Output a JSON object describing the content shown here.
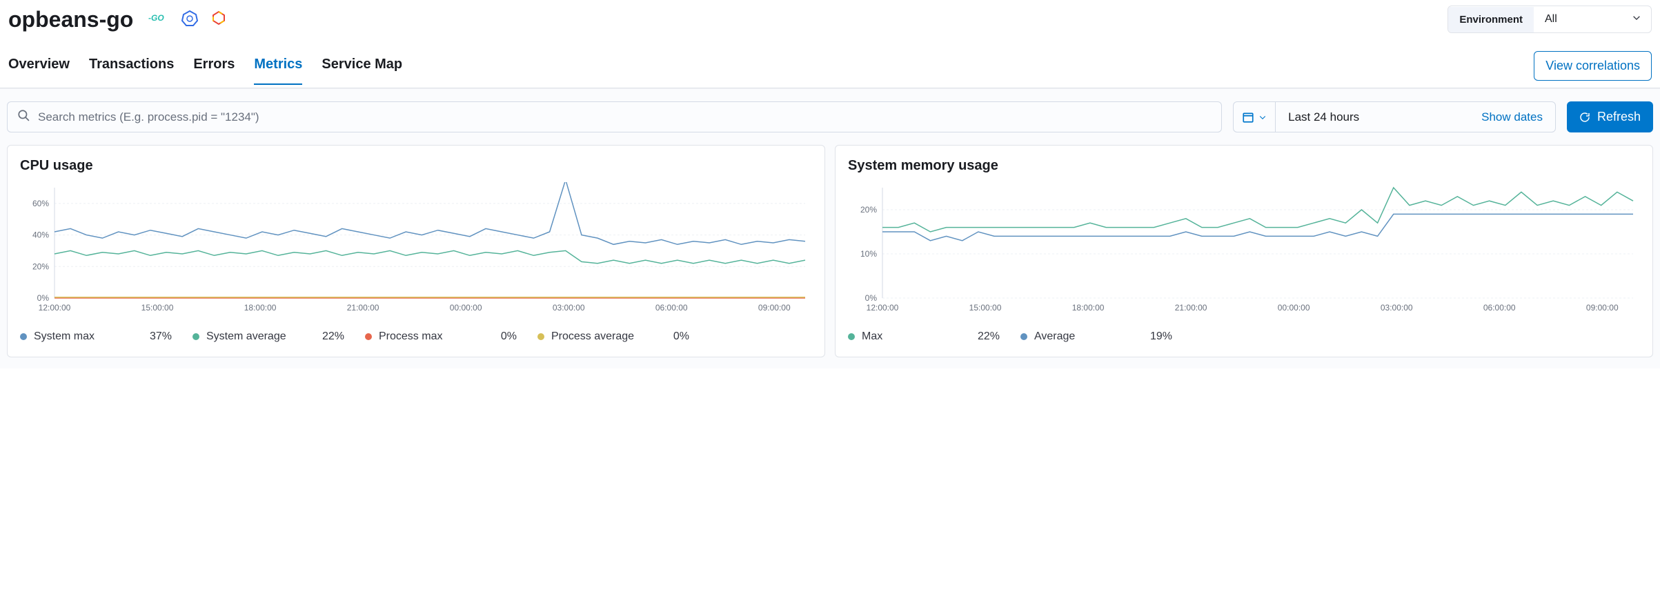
{
  "header": {
    "title": "opbeans-go",
    "icons": [
      "go-icon",
      "kubernetes-icon",
      "gcp-icon"
    ],
    "environment_label": "Environment",
    "environment_value": "All"
  },
  "tabs": {
    "items": [
      {
        "label": "Overview",
        "active": false
      },
      {
        "label": "Transactions",
        "active": false
      },
      {
        "label": "Errors",
        "active": false
      },
      {
        "label": "Metrics",
        "active": true
      },
      {
        "label": "Service Map",
        "active": false
      }
    ],
    "correlations_button": "View correlations"
  },
  "filters": {
    "search_placeholder": "Search metrics (E.g. process.pid = \"1234\")",
    "time_label": "Last 24 hours",
    "show_dates": "Show dates",
    "refresh_label": "Refresh"
  },
  "colors": {
    "blue_series": "#6092c0",
    "green_series": "#54b399",
    "orange_series": "#d36086",
    "yellow_series": "#d6bf57",
    "axis": "#98a2b3",
    "grid": "#eef0f4",
    "primary": "#0077cc"
  },
  "cpu_chart": {
    "title": "CPU usage",
    "type": "line",
    "ylim": [
      0,
      70
    ],
    "yticks": [
      0,
      20,
      40,
      60
    ],
    "ytick_labels": [
      "0%",
      "20%",
      "40%",
      "60%"
    ],
    "xtick_labels": [
      "12:00:00",
      "15:00:00",
      "18:00:00",
      "21:00:00",
      "00:00:00",
      "03:00:00",
      "06:00:00",
      "09:00:00"
    ],
    "grid_color": "#eef0f4",
    "background_color": "#ffffff",
    "line_width": 1.5,
    "series": [
      {
        "name": "System max",
        "color": "#6092c0",
        "value": "37%",
        "data": [
          42,
          44,
          40,
          38,
          42,
          40,
          43,
          41,
          39,
          44,
          42,
          40,
          38,
          42,
          40,
          43,
          41,
          39,
          44,
          42,
          40,
          38,
          42,
          40,
          43,
          41,
          39,
          44,
          42,
          40,
          38,
          42,
          75,
          40,
          38,
          34,
          36,
          35,
          37,
          34,
          36,
          35,
          37,
          34,
          36,
          35,
          37,
          36
        ]
      },
      {
        "name": "System average",
        "color": "#54b399",
        "value": "22%",
        "data": [
          28,
          30,
          27,
          29,
          28,
          30,
          27,
          29,
          28,
          30,
          27,
          29,
          28,
          30,
          27,
          29,
          28,
          30,
          27,
          29,
          28,
          30,
          27,
          29,
          28,
          30,
          27,
          29,
          28,
          30,
          27,
          29,
          30,
          23,
          22,
          24,
          22,
          24,
          22,
          24,
          22,
          24,
          22,
          24,
          22,
          24,
          22,
          24
        ]
      },
      {
        "name": "Process max",
        "color": "#e7664c",
        "value": "0%",
        "data": [
          0,
          0,
          0,
          0,
          0,
          0,
          0,
          0,
          0,
          0,
          0,
          0,
          0,
          0,
          0,
          0,
          0,
          0,
          0,
          0,
          0,
          0,
          0,
          0,
          0,
          0,
          0,
          0,
          0,
          0,
          0,
          0,
          0,
          0,
          0,
          0,
          0,
          0,
          0,
          0,
          0,
          0,
          0,
          0,
          0,
          0,
          0,
          0
        ]
      },
      {
        "name": "Process average",
        "color": "#d6bf57",
        "value": "0%",
        "data": [
          0.5,
          0.5,
          0.5,
          0.5,
          0.5,
          0.5,
          0.5,
          0.5,
          0.5,
          0.5,
          0.5,
          0.5,
          0.5,
          0.5,
          0.5,
          0.5,
          0.5,
          0.5,
          0.5,
          0.5,
          0.5,
          0.5,
          0.5,
          0.5,
          0.5,
          0.5,
          0.5,
          0.5,
          0.5,
          0.5,
          0.5,
          0.5,
          0.5,
          0.5,
          0.5,
          0.5,
          0.5,
          0.5,
          0.5,
          0.5,
          0.5,
          0.5,
          0.5,
          0.5,
          0.5,
          0.5,
          0.5,
          0.5
        ]
      }
    ]
  },
  "mem_chart": {
    "title": "System memory usage",
    "type": "line",
    "ylim": [
      0,
      25
    ],
    "yticks": [
      0,
      10,
      20
    ],
    "ytick_labels": [
      "0%",
      "10%",
      "20%"
    ],
    "xtick_labels": [
      "12:00:00",
      "15:00:00",
      "18:00:00",
      "21:00:00",
      "00:00:00",
      "03:00:00",
      "06:00:00",
      "09:00:00"
    ],
    "grid_color": "#eef0f4",
    "background_color": "#ffffff",
    "line_width": 1.5,
    "series": [
      {
        "name": "Max",
        "color": "#54b399",
        "value": "22%",
        "data": [
          16,
          16,
          17,
          15,
          16,
          16,
          16,
          16,
          16,
          16,
          16,
          16,
          16,
          17,
          16,
          16,
          16,
          16,
          17,
          18,
          16,
          16,
          17,
          18,
          16,
          16,
          16,
          17,
          18,
          17,
          20,
          17,
          25,
          21,
          22,
          21,
          23,
          21,
          22,
          21,
          24,
          21,
          22,
          21,
          23,
          21,
          24,
          22
        ]
      },
      {
        "name": "Average",
        "color": "#6092c0",
        "value": "19%",
        "data": [
          15,
          15,
          15,
          13,
          14,
          13,
          15,
          14,
          14,
          14,
          14,
          14,
          14,
          14,
          14,
          14,
          14,
          14,
          14,
          15,
          14,
          14,
          14,
          15,
          14,
          14,
          14,
          14,
          15,
          14,
          15,
          14,
          19,
          19,
          19,
          19,
          19,
          19,
          19,
          19,
          19,
          19,
          19,
          19,
          19,
          19,
          19,
          19
        ]
      }
    ]
  }
}
